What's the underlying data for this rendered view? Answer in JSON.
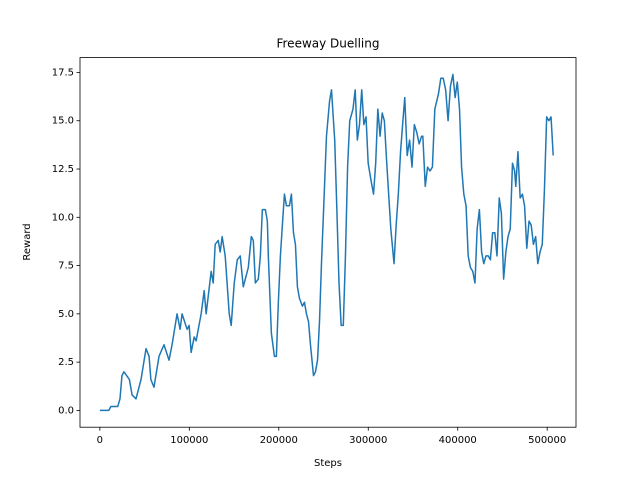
{
  "chart_data": {
    "type": "line",
    "title": "Freeway Duelling",
    "x_label": "Steps",
    "y_label": "Reward",
    "color": "#1f77b4",
    "x": [
      0,
      10000,
      12300,
      20000,
      22500,
      24700,
      26900,
      30000,
      33000,
      36000,
      40400,
      46000,
      51600,
      55000,
      57000,
      60500,
      66100,
      71700,
      77300,
      80700,
      86300,
      89700,
      91900,
      97500,
      99800,
      102000,
      105400,
      107600,
      113200,
      116600,
      118800,
      124400,
      126700,
      128900,
      132300,
      134500,
      136700,
      140100,
      144600,
      146800,
      150200,
      153600,
      156900,
      160300,
      163700,
      165900,
      169300,
      171500,
      173800,
      177100,
      179400,
      181600,
      185000,
      187200,
      188300,
      191700,
      195100,
      197300,
      199500,
      201800,
      204000,
      206300,
      208500,
      211900,
      214100,
      216400,
      218600,
      220800,
      223100,
      226400,
      228700,
      230900,
      233200,
      235400,
      238800,
      241000,
      243300,
      245500,
      247700,
      251100,
      253300,
      256700,
      258900,
      262500,
      264900,
      267300,
      269700,
      272100,
      274500,
      276900,
      279300,
      282900,
      285400,
      287800,
      290200,
      292700,
      295100,
      297500,
      299900,
      303500,
      305900,
      308300,
      310700,
      313200,
      315600,
      318000,
      320400,
      322800,
      325200,
      328800,
      331200,
      333600,
      336100,
      338400,
      340800,
      343500,
      346200,
      348900,
      351500,
      354200,
      356900,
      359600,
      361000,
      363700,
      366300,
      369000,
      371700,
      374400,
      378500,
      381100,
      383800,
      386500,
      389200,
      391900,
      394600,
      397100,
      399500,
      402000,
      404300,
      406800,
      409300,
      411700,
      414200,
      416800,
      419300,
      421700,
      424200,
      426700,
      429100,
      431600,
      434100,
      436500,
      439000,
      441500,
      443900,
      446400,
      448800,
      451300,
      453800,
      456200,
      458700,
      461200,
      463600,
      464900,
      467300,
      469800,
      472300,
      474700,
      477200,
      479700,
      482100,
      484600,
      487100,
      489500,
      492000,
      494500,
      496900,
      499400,
      501900,
      504300,
      506700
    ],
    "values": [
      0,
      0,
      0.2,
      0.2,
      0.6,
      1.8,
      2.0,
      1.8,
      1.6,
      0.8,
      0.6,
      1.6,
      3.2,
      2.8,
      1.6,
      1.2,
      2.8,
      3.4,
      2.6,
      3.4,
      5.0,
      4.2,
      5.0,
      4.2,
      4.4,
      3.0,
      3.8,
      3.6,
      5.0,
      6.2,
      5.0,
      7.2,
      6.6,
      8.6,
      8.8,
      8.2,
      9.0,
      8.0,
      5.0,
      4.4,
      6.6,
      7.8,
      8.0,
      6.4,
      7.0,
      7.4,
      9.0,
      8.8,
      6.6,
      6.8,
      8.0,
      10.4,
      10.4,
      9.8,
      8.0,
      4.0,
      2.8,
      2.8,
      5.6,
      8.0,
      9.6,
      11.2,
      10.6,
      10.6,
      11.2,
      9.2,
      8.6,
      6.4,
      5.8,
      5.4,
      5.6,
      5.0,
      4.6,
      3.4,
      1.8,
      2.0,
      2.6,
      4.6,
      7.6,
      11.6,
      14.2,
      16.0,
      16.6,
      14.0,
      10.4,
      6.6,
      4.4,
      4.4,
      8.0,
      12.6,
      15.0,
      15.6,
      16.6,
      14.0,
      14.8,
      16.6,
      14.8,
      15.2,
      12.8,
      11.8,
      11.2,
      12.8,
      15.6,
      14.2,
      15.4,
      15.0,
      13.0,
      11.2,
      9.4,
      7.6,
      9.6,
      11.2,
      13.4,
      14.8,
      16.2,
      13.2,
      14.0,
      12.6,
      14.8,
      14.4,
      13.8,
      14.2,
      14.2,
      11.6,
      12.6,
      12.4,
      12.6,
      15.6,
      16.4,
      17.2,
      17.2,
      16.6,
      15.0,
      16.8,
      17.4,
      16.2,
      17.0,
      15.6,
      12.6,
      11.2,
      10.6,
      8.0,
      7.4,
      7.2,
      6.6,
      9.4,
      10.4,
      8.2,
      7.6,
      8.0,
      8.0,
      7.8,
      9.2,
      9.2,
      8.0,
      11.0,
      10.2,
      6.8,
      8.2,
      9.0,
      9.4,
      12.8,
      12.4,
      11.6,
      13.4,
      11.0,
      11.2,
      10.6,
      8.4,
      9.8,
      9.6,
      8.6,
      9.0,
      7.6,
      8.2,
      8.6,
      11.4,
      15.2,
      15.0,
      15.2,
      13.2
    ],
    "xlim": [
      -22200,
      532200
    ],
    "ylim": [
      -0.87,
      18.27
    ],
    "xticks": [
      0,
      100000,
      200000,
      300000,
      400000,
      500000
    ],
    "yticks": [
      {
        "value": 0,
        "label": "0.0"
      },
      {
        "value": 2.5,
        "label": "2.5"
      },
      {
        "value": 5,
        "label": "5.0"
      },
      {
        "value": 7.5,
        "label": "7.5"
      },
      {
        "value": 10,
        "label": "10.0"
      },
      {
        "value": 12.5,
        "label": "12.5"
      },
      {
        "value": 15,
        "label": "15.0"
      },
      {
        "value": 17.5,
        "label": "17.5"
      }
    ]
  }
}
